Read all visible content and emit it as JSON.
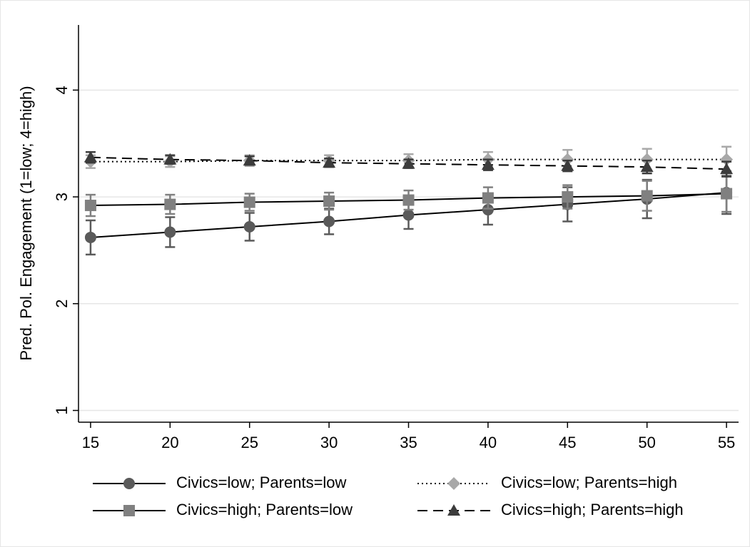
{
  "chart_data": {
    "type": "line",
    "y_label": "Pred. Pol. Engagement (1=low; 4=high)",
    "x": [
      15,
      20,
      25,
      30,
      35,
      40,
      45,
      50,
      55
    ],
    "xlim": [
      14.24,
      55.76
    ],
    "ylim": [
      0.89,
      4.61
    ],
    "xticks": [
      15,
      20,
      25,
      30,
      35,
      40,
      45,
      50,
      55
    ],
    "yticks": [
      1,
      2,
      3,
      4
    ],
    "grid": true,
    "legend": "bottom",
    "series": [
      {
        "name": "Civics=low; Parents=low",
        "color": "#5a5a5a",
        "marker": "circle",
        "line_style": "solid",
        "values": [
          2.62,
          2.67,
          2.72,
          2.77,
          2.83,
          2.88,
          2.93,
          2.98,
          3.04
        ],
        "errors": [
          0.16,
          0.14,
          0.13,
          0.12,
          0.13,
          0.14,
          0.16,
          0.18,
          0.2
        ]
      },
      {
        "name": "Civics=low; Parents=high",
        "color": "#a8a8a8",
        "marker": "diamond",
        "line_style": "dotted",
        "values": [
          3.33,
          3.33,
          3.34,
          3.34,
          3.34,
          3.35,
          3.35,
          3.35,
          3.35
        ],
        "errors": [
          0.06,
          0.05,
          0.05,
          0.05,
          0.06,
          0.07,
          0.09,
          0.1,
          0.12
        ]
      },
      {
        "name": "Civics=high; Parents=low",
        "color": "#808080",
        "marker": "square",
        "line_style": "solid",
        "values": [
          2.92,
          2.93,
          2.95,
          2.96,
          2.97,
          2.99,
          3.0,
          3.01,
          3.03
        ],
        "errors": [
          0.1,
          0.09,
          0.08,
          0.08,
          0.09,
          0.1,
          0.11,
          0.14,
          0.17
        ]
      },
      {
        "name": "Civics=high; Parents=high",
        "color": "#3c3c3c",
        "marker": "triangle",
        "line_style": "dashed",
        "values": [
          3.37,
          3.35,
          3.34,
          3.32,
          3.31,
          3.3,
          3.29,
          3.28,
          3.26
        ],
        "errors": [
          0.05,
          0.04,
          0.04,
          0.04,
          0.04,
          0.05,
          0.05,
          0.06,
          0.07
        ]
      }
    ]
  }
}
